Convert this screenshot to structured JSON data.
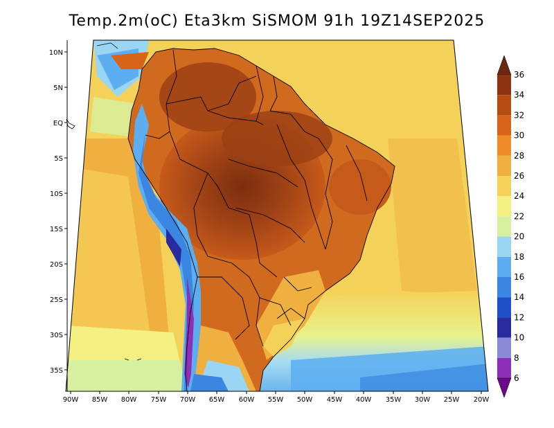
{
  "title": "Temp.2m(oC) Eta3km SiSMOM 91h 19Z14SEP2025",
  "lat_labels": [
    "10N",
    "5N",
    "EQ",
    "5S",
    "10S",
    "15S",
    "20S",
    "25S",
    "30S",
    "35S"
  ],
  "lon_labels": [
    "90W",
    "85W",
    "80W",
    "75W",
    "70W",
    "65W",
    "60W",
    "55W",
    "50W",
    "45W",
    "40W",
    "35W",
    "30W",
    "25W",
    "20W"
  ],
  "colorbar": {
    "levels": [
      "6",
      "8",
      "10",
      "12",
      "14",
      "16",
      "18",
      "20",
      "22",
      "24",
      "26",
      "28",
      "30",
      "32",
      "34",
      "36"
    ],
    "colors": [
      "#6a0a8a",
      "#8e2fb8",
      "#8a8ad8",
      "#2a2aa0",
      "#1e50c8",
      "#3a86e0",
      "#5caef0",
      "#9ad6f4",
      "#d6f0a0",
      "#f4f082",
      "#f4d25a",
      "#f0b040",
      "#ee8c2a",
      "#d86418",
      "#b44c12",
      "#8c3410",
      "#6a2810"
    ],
    "min_label": "6",
    "max_label": "36"
  }
}
